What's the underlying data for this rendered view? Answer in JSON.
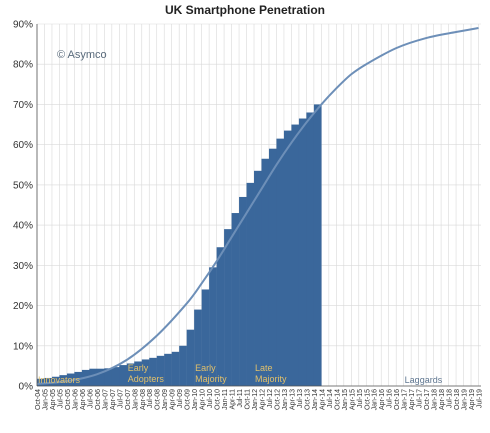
{
  "chart_data": {
    "type": "bar",
    "title": "UK Smartphone Penetration",
    "credit": "© Asymco",
    "ylim": [
      0,
      90
    ],
    "y_ticks": [
      {
        "value": 0,
        "label": "0%"
      },
      {
        "value": 10,
        "label": "10%"
      },
      {
        "value": 20,
        "label": "20%"
      },
      {
        "value": 30,
        "label": "30%"
      },
      {
        "value": 40,
        "label": "40%"
      },
      {
        "value": 50,
        "label": "50%"
      },
      {
        "value": 60,
        "label": "60%"
      },
      {
        "value": 70,
        "label": "70%"
      },
      {
        "value": 80,
        "label": "80%"
      },
      {
        "value": 90,
        "label": "90%"
      }
    ],
    "x_ticks": [
      "Oct-04",
      "Jan-05",
      "Apr-05",
      "Jul-05",
      "Oct-05",
      "Jan-06",
      "Apr-06",
      "Jul-06",
      "Oct-06",
      "Jan-07",
      "Apr-07",
      "Jul-07",
      "Oct-07",
      "Jan-08",
      "Apr-08",
      "Jul-08",
      "Oct-08",
      "Jan-09",
      "Apr-09",
      "Jul-09",
      "Oct-09",
      "Jan-10",
      "Apr-10",
      "Jul-10",
      "Oct-10",
      "Jan-11",
      "Apr-11",
      "Jul-11",
      "Oct-11",
      "Jan-12",
      "Apr-12",
      "Jul-12",
      "Oct-12",
      "Jan-13",
      "Apr-13",
      "Jul-13",
      "Oct-13",
      "Jan-14",
      "Apr-14",
      "Jul-14",
      "Oct-14",
      "Jan-15",
      "Apr-15",
      "Jul-15",
      "Oct-15",
      "Jan-16",
      "Apr-16",
      "Jul-16",
      "Oct-16",
      "Jan-17",
      "Apr-17",
      "Jul-17",
      "Oct-17",
      "Jan-18",
      "Apr-18",
      "Jul-18",
      "Oct-18",
      "Jan-19",
      "Apr-19",
      "Jul-19"
    ],
    "series": [
      {
        "type": "bar",
        "color": "#3a679b",
        "x": [
          "Oct-04",
          "Jan-05",
          "Apr-05",
          "Jul-05",
          "Oct-05",
          "Jan-06",
          "Apr-06",
          "Jul-06",
          "Oct-06",
          "Jan-07",
          "Apr-07",
          "Jul-07",
          "Oct-07",
          "Jan-08",
          "Apr-08",
          "Jul-08",
          "Oct-08",
          "Jan-09",
          "Apr-09",
          "Jul-09",
          "Oct-09",
          "Jan-10",
          "Apr-10",
          "Jul-10",
          "Oct-10",
          "Jan-11",
          "Apr-11",
          "Jul-11",
          "Oct-11",
          "Jan-12",
          "Apr-12",
          "Jul-12",
          "Oct-12",
          "Jan-13",
          "Apr-13",
          "Jul-13",
          "Oct-13",
          "Jan-14"
        ],
        "values": [
          1.8,
          2.0,
          2.3,
          2.7,
          3.1,
          3.5,
          4.0,
          4.3,
          4.3,
          4.4,
          4.7,
          5.2,
          5.6,
          6.1,
          6.6,
          7.0,
          7.5,
          8.0,
          8.5,
          10.0,
          14.0,
          19.0,
          24.0,
          29.5,
          34.5,
          39.0,
          43.0,
          47.0,
          50.5,
          53.5,
          56.5,
          59.0,
          61.5,
          63.5,
          65.0,
          66.5,
          68.0,
          70.0
        ]
      },
      {
        "type": "line",
        "color": "#6d8fb8",
        "x": [
          "Oct-04",
          "Oct-05",
          "Oct-06",
          "Oct-07",
          "Oct-08",
          "Oct-09",
          "Apr-10",
          "Oct-10",
          "Apr-11",
          "Oct-11",
          "Apr-12",
          "Oct-12",
          "Apr-13",
          "Oct-13",
          "Apr-14",
          "Oct-14",
          "Apr-15",
          "Oct-15",
          "Oct-16",
          "Oct-17",
          "Oct-18",
          "Jul-19"
        ],
        "values": [
          0.5,
          1.2,
          2.9,
          6.5,
          12.5,
          20.5,
          25.5,
          31.0,
          37.0,
          43.0,
          49.0,
          55.0,
          60.5,
          65.5,
          70.0,
          74.0,
          77.5,
          80.0,
          84.0,
          86.5,
          88.0,
          89.0
        ]
      }
    ],
    "segments": [
      {
        "label": [
          "Innovators"
        ],
        "x": "Oct-04"
      },
      {
        "label": [
          "Early",
          "Adopters"
        ],
        "x": "Oct-07"
      },
      {
        "label": [
          "Early",
          "Majority"
        ],
        "x": "Jan-10"
      },
      {
        "label": [
          "Late",
          "Majority"
        ],
        "x": "Jan-12"
      },
      {
        "label": [
          "Laggards"
        ],
        "x": "Jan-17"
      }
    ],
    "colors": {
      "grid": "#d9d9d9",
      "axis": "#555555",
      "segment_label_left": "#e2c06a",
      "segment_label_right": "#5f7690"
    }
  }
}
